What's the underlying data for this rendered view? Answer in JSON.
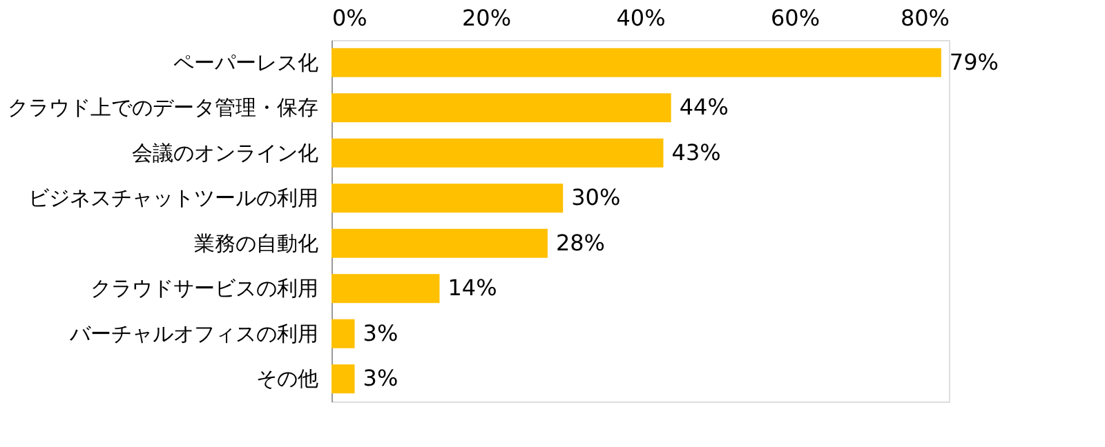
{
  "chart_data": {
    "type": "bar",
    "orientation": "horizontal",
    "categories": [
      "ペーパーレス化",
      "クラウド上でのデータ管理・保存",
      "会議のオンライン化",
      "ビジネスチャットツールの利用",
      "業務の自動化",
      "クラウドサービスの利用",
      "バーチャルオフィスの利用",
      "その他"
    ],
    "values": [
      79,
      44,
      43,
      30,
      28,
      14,
      3,
      3
    ],
    "value_labels": [
      "79%",
      "44%",
      "43%",
      "30%",
      "28%",
      "14%",
      "3%",
      "3%"
    ],
    "color": "#ffc000",
    "xlim": [
      0,
      80
    ],
    "xticks": [
      {
        "value": 0,
        "label": "0%"
      },
      {
        "value": 20,
        "label": "20%"
      },
      {
        "value": 40,
        "label": "40%"
      },
      {
        "value": 60,
        "label": "60%"
      },
      {
        "value": 80,
        "label": "80%"
      }
    ],
    "grid": false
  }
}
